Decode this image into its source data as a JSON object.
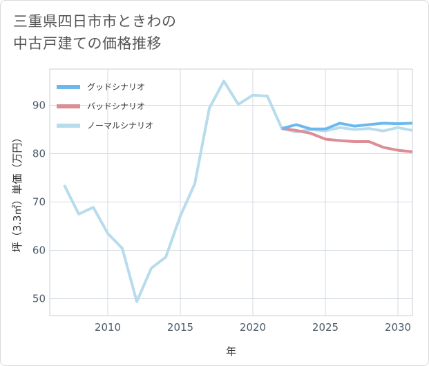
{
  "title_lines": [
    "三重県四日市市ときわの",
    "中古戸建ての価格推移"
  ],
  "chart_data": {
    "type": "line",
    "title": "三重県四日市市ときわの中古戸建ての価格推移",
    "xlabel": "年",
    "ylabel": "坪（3.3㎡）単価（万円）",
    "xlim": [
      2006,
      2031
    ],
    "ylim": [
      46.5,
      97.5
    ],
    "xticks": [
      2010,
      2015,
      2020,
      2025,
      2030
    ],
    "yticks": [
      50,
      60,
      70,
      80,
      90
    ],
    "grid": true,
    "legend_position": "top-left",
    "series": [
      {
        "name": "グッドシナリオ",
        "color": "#6cb8ee",
        "x": [
          2022,
          2023,
          2024,
          2025,
          2026,
          2027,
          2028,
          2029,
          2030,
          2031
        ],
        "y": [
          85.2,
          86.0,
          85.1,
          85.1,
          86.3,
          85.7,
          86.0,
          86.3,
          86.2,
          86.3
        ]
      },
      {
        "name": "バッドシナリオ",
        "color": "#dc8e96",
        "x": [
          2022,
          2023,
          2024,
          2025,
          2026,
          2027,
          2028,
          2029,
          2030,
          2031
        ],
        "y": [
          85.2,
          84.8,
          84.2,
          83.0,
          82.7,
          82.5,
          82.5,
          81.3,
          80.7,
          80.4
        ]
      },
      {
        "name": "ノーマルシナリオ",
        "color": "#b7dcec",
        "x": [
          2007,
          2008,
          2009,
          2010,
          2011,
          2012,
          2013,
          2014,
          2015,
          2016,
          2017,
          2018,
          2019,
          2020,
          2021,
          2022,
          2023,
          2024,
          2025,
          2026,
          2027,
          2028,
          2029,
          2030,
          2031
        ],
        "y": [
          73.5,
          67.5,
          68.9,
          63.5,
          60.4,
          49.4,
          56.3,
          58.6,
          67.1,
          73.8,
          89.4,
          95.0,
          90.2,
          92.1,
          91.9,
          85.2,
          84.5,
          85.0,
          84.7,
          85.4,
          85.0,
          85.2,
          84.7,
          85.4,
          84.8
        ]
      }
    ]
  }
}
